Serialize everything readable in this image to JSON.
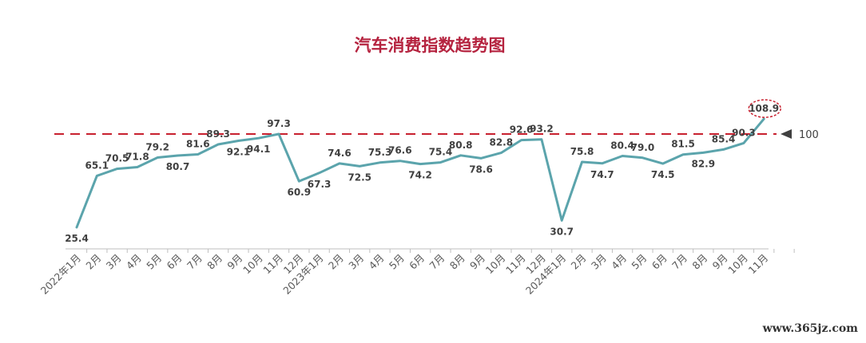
{
  "chart_data": {
    "type": "line",
    "title": "汽车消费指数趋势图",
    "categories": [
      "2022年1月",
      "2月",
      "3月",
      "4月",
      "5月",
      "6月",
      "7月",
      "8月",
      "9月",
      "10月",
      "11月",
      "12月",
      "2023年1月",
      "2月",
      "3月",
      "4月",
      "5月",
      "6月",
      "7月",
      "8月",
      "9月",
      "10月",
      "11月",
      "12月",
      "2024年1月",
      "2月",
      "3月",
      "4月",
      "5月",
      "6月",
      "7月",
      "8月",
      "9月",
      "10月",
      "11月"
    ],
    "values": [
      25.4,
      65.1,
      70.5,
      71.8,
      79.2,
      80.7,
      81.6,
      89.3,
      92.1,
      94.1,
      97.3,
      60.9,
      67.3,
      74.6,
      72.5,
      75.3,
      76.6,
      74.2,
      75.4,
      80.8,
      78.6,
      82.8,
      92.6,
      93.2,
      30.7,
      75.8,
      74.7,
      80.4,
      79.0,
      74.5,
      81.5,
      82.9,
      85.4,
      90.3,
      108.9
    ],
    "value_labels": [
      "25.4",
      "65.1",
      "70.5",
      "71.8",
      "79.2",
      "80.7",
      "81.6",
      "89.3",
      "92.1",
      "94.1",
      "97.3",
      "60.9",
      "67.3",
      "74.6",
      "72.5",
      "75.3",
      "76.6",
      "74.2",
      "75.4",
      "80.8",
      "78.6",
      "82.8",
      "92.6",
      "93.2",
      "30.7",
      "75.8",
      "74.7",
      "80.4",
      "79.0",
      "74.5",
      "81.5",
      "82.9",
      "85.4",
      "90.3",
      "108.9"
    ],
    "label_position": [
      "below",
      "above",
      "above",
      "above",
      "above",
      "below",
      "above",
      "above",
      "below",
      "below",
      "above",
      "below",
      "below",
      "above",
      "below",
      "above",
      "above",
      "below",
      "above",
      "above",
      "below",
      "above",
      "above",
      "above",
      "below",
      "above",
      "below",
      "above",
      "above",
      "below",
      "above",
      "below",
      "above",
      "above",
      "above"
    ],
    "ylim": [
      0,
      115
    ],
    "reference_line": {
      "value": 100,
      "label": "100",
      "color": "#c8202f"
    },
    "highlight": {
      "index": 34,
      "color": "#c8202f"
    },
    "line_color": "#5ba4ac",
    "grid": false,
    "legend": "none"
  },
  "watermark": "www.365jz.com"
}
